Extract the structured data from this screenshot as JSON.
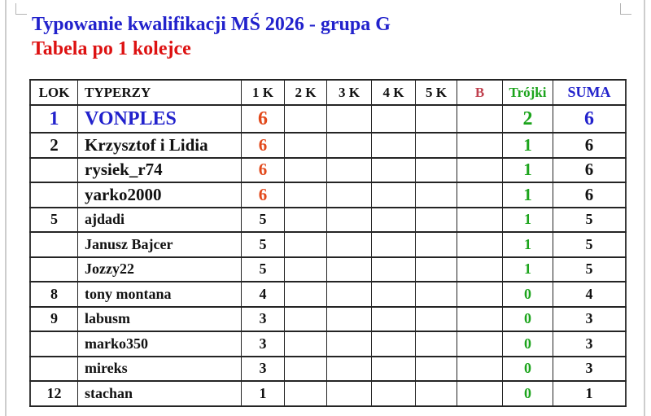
{
  "page": {
    "title": "Typowanie kwalifikacji MŚ 2026 - grupa G",
    "subtitle": "Tabela po 1 kolejce",
    "title_color": "#2222CC",
    "subtitle_color": "#DD1111"
  },
  "colors": {
    "text_black": "#111111",
    "leader_blue": "#2222CC",
    "points_orange": "#E2491B",
    "trojki_green": "#1CA41C",
    "bonus_crimson": "#C0404E"
  },
  "table": {
    "columns": [
      {
        "key": "lok",
        "label": "LOK",
        "color": "#111111"
      },
      {
        "key": "name",
        "label": "TYPERZY",
        "color": "#111111"
      },
      {
        "key": "k1",
        "label": "1 K",
        "color": "#111111"
      },
      {
        "key": "k2",
        "label": "2 K",
        "color": "#111111"
      },
      {
        "key": "k3",
        "label": "3 K",
        "color": "#111111"
      },
      {
        "key": "k4",
        "label": "4 K",
        "color": "#111111"
      },
      {
        "key": "k5",
        "label": "5 K",
        "color": "#111111"
      },
      {
        "key": "b",
        "label": "B",
        "color": "#C0404E"
      },
      {
        "key": "trojki",
        "label": "Trójki",
        "color": "#1CA41C"
      },
      {
        "key": "suma",
        "label": "SUMA",
        "color": "#2222CC"
      }
    ],
    "rows": [
      {
        "lok": "1",
        "name": "VONPLES",
        "k1": "6",
        "k2": "",
        "k3": "",
        "k4": "",
        "k5": "",
        "b": "",
        "trojki": "2",
        "suma": "6",
        "tier": "xl",
        "lok_color": "#2222CC",
        "name_color": "#2222CC",
        "k1_color": "#E2491B",
        "trojki_color": "#1CA41C",
        "suma_color": "#2222CC"
      },
      {
        "lok": "2",
        "name": "Krzysztof i Lidia",
        "k1": "6",
        "k2": "",
        "k3": "",
        "k4": "",
        "k5": "",
        "b": "",
        "trojki": "1",
        "suma": "6",
        "tier": "lg",
        "lok_color": "#111111",
        "name_color": "#111111",
        "k1_color": "#E2491B",
        "trojki_color": "#1CA41C",
        "suma_color": "#111111"
      },
      {
        "lok": "",
        "name": "rysiek_r74",
        "k1": "6",
        "k2": "",
        "k3": "",
        "k4": "",
        "k5": "",
        "b": "",
        "trojki": "1",
        "suma": "6",
        "tier": "lg",
        "lok_color": "#111111",
        "name_color": "#111111",
        "k1_color": "#E2491B",
        "trojki_color": "#1CA41C",
        "suma_color": "#111111"
      },
      {
        "lok": "",
        "name": "yarko2000",
        "k1": "6",
        "k2": "",
        "k3": "",
        "k4": "",
        "k5": "",
        "b": "",
        "trojki": "1",
        "suma": "6",
        "tier": "lg",
        "lok_color": "#111111",
        "name_color": "#111111",
        "k1_color": "#E2491B",
        "trojki_color": "#1CA41C",
        "suma_color": "#111111"
      },
      {
        "lok": "5",
        "name": "ajdadi",
        "k1": "5",
        "k2": "",
        "k3": "",
        "k4": "",
        "k5": "",
        "b": "",
        "trojki": "1",
        "suma": "5",
        "tier": "md",
        "lok_color": "#111111",
        "name_color": "#111111",
        "k1_color": "#111111",
        "trojki_color": "#1CA41C",
        "suma_color": "#111111"
      },
      {
        "lok": "",
        "name": "Janusz Bajcer",
        "k1": "5",
        "k2": "",
        "k3": "",
        "k4": "",
        "k5": "",
        "b": "",
        "trojki": "1",
        "suma": "5",
        "tier": "md",
        "lok_color": "#111111",
        "name_color": "#111111",
        "k1_color": "#111111",
        "trojki_color": "#1CA41C",
        "suma_color": "#111111"
      },
      {
        "lok": "",
        "name": "Jozzy22",
        "k1": "5",
        "k2": "",
        "k3": "",
        "k4": "",
        "k5": "",
        "b": "",
        "trojki": "1",
        "suma": "5",
        "tier": "md",
        "lok_color": "#111111",
        "name_color": "#111111",
        "k1_color": "#111111",
        "trojki_color": "#1CA41C",
        "suma_color": "#111111"
      },
      {
        "lok": "8",
        "name": "tony montana",
        "k1": "4",
        "k2": "",
        "k3": "",
        "k4": "",
        "k5": "",
        "b": "",
        "trojki": "0",
        "suma": "4",
        "tier": "md",
        "lok_color": "#111111",
        "name_color": "#111111",
        "k1_color": "#111111",
        "trojki_color": "#1CA41C",
        "suma_color": "#111111"
      },
      {
        "lok": "9",
        "name": "labusm",
        "k1": "3",
        "k2": "",
        "k3": "",
        "k4": "",
        "k5": "",
        "b": "",
        "trojki": "0",
        "suma": "3",
        "tier": "md",
        "lok_color": "#111111",
        "name_color": "#111111",
        "k1_color": "#111111",
        "trojki_color": "#1CA41C",
        "suma_color": "#111111"
      },
      {
        "lok": "",
        "name": "marko350",
        "k1": "3",
        "k2": "",
        "k3": "",
        "k4": "",
        "k5": "",
        "b": "",
        "trojki": "0",
        "suma": "3",
        "tier": "md",
        "lok_color": "#111111",
        "name_color": "#111111",
        "k1_color": "#111111",
        "trojki_color": "#1CA41C",
        "suma_color": "#111111"
      },
      {
        "lok": "",
        "name": "mireks",
        "k1": "3",
        "k2": "",
        "k3": "",
        "k4": "",
        "k5": "",
        "b": "",
        "trojki": "0",
        "suma": "3",
        "tier": "md",
        "lok_color": "#111111",
        "name_color": "#111111",
        "k1_color": "#111111",
        "trojki_color": "#1CA41C",
        "suma_color": "#111111"
      },
      {
        "lok": "12",
        "name": "stachan",
        "k1": "1",
        "k2": "",
        "k3": "",
        "k4": "",
        "k5": "",
        "b": "",
        "trojki": "0",
        "suma": "1",
        "tier": "md",
        "lok_color": "#111111",
        "name_color": "#111111",
        "k1_color": "#111111",
        "trojki_color": "#1CA41C",
        "suma_color": "#111111"
      }
    ]
  }
}
